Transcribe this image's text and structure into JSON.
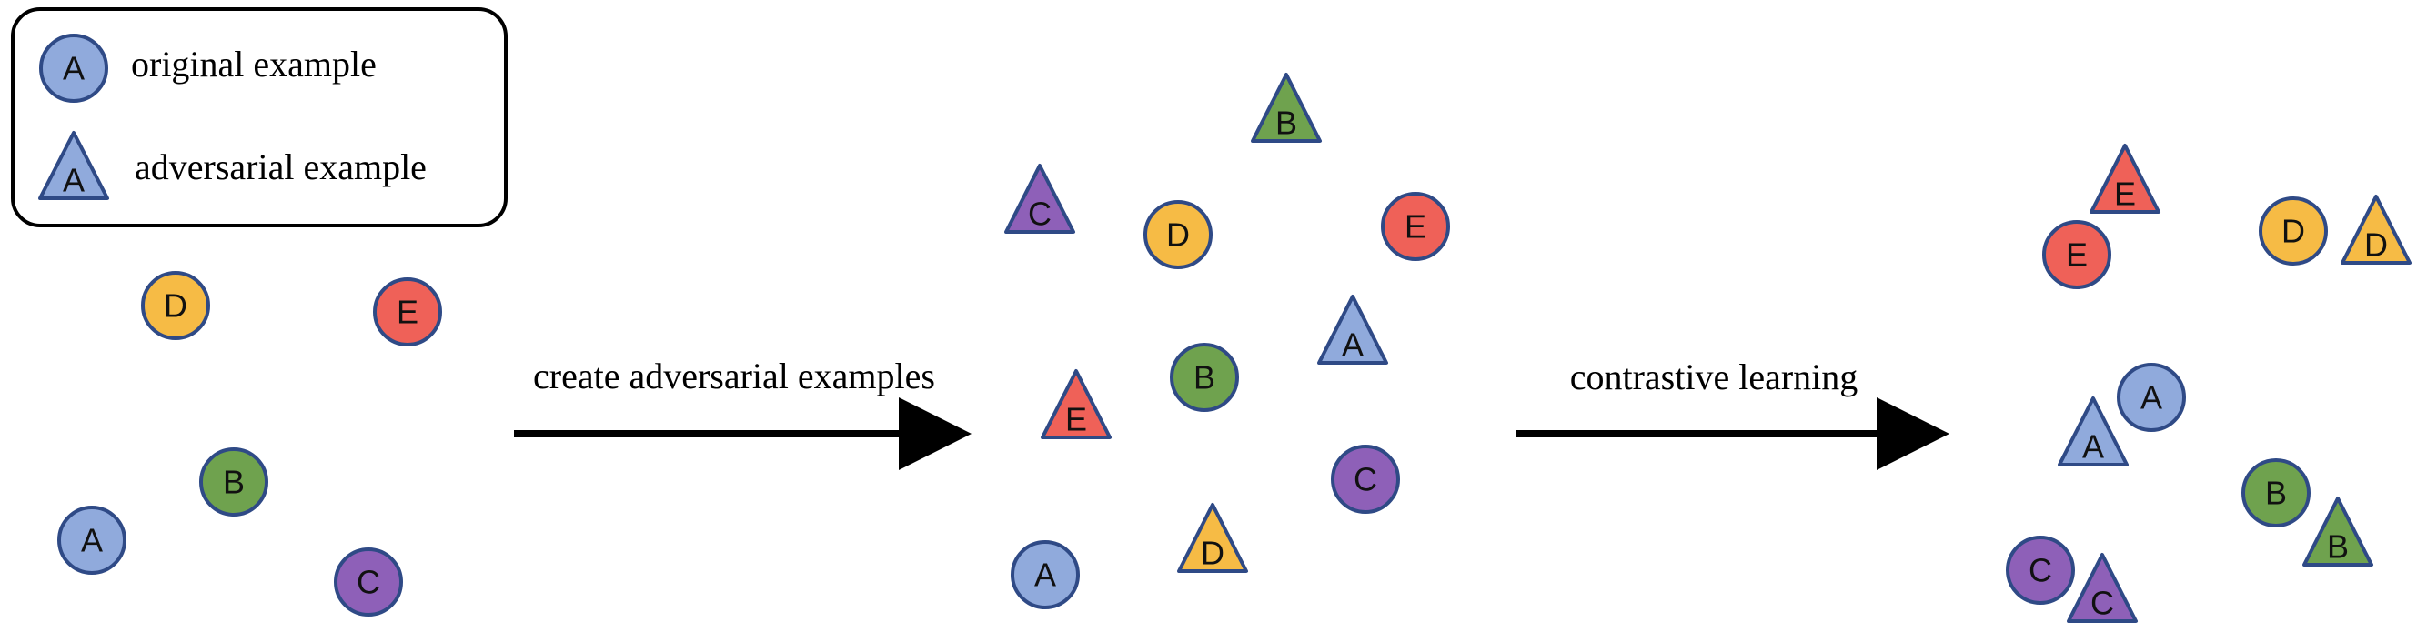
{
  "legend": {
    "original_label": "original example",
    "adversarial_label": "adversarial example",
    "sample_letter": "A"
  },
  "arrows": {
    "create_label": "create adversarial examples",
    "contrastive_label": "contrastive learning"
  },
  "colors": {
    "A": "#90aadc",
    "B": "#6fa24e",
    "C": "#8e60b8",
    "D": "#f6bb45",
    "E": "#ef6158",
    "stroke": "#2f4a86"
  },
  "panels": {
    "original": {
      "circles": [
        "D",
        "E",
        "B",
        "A",
        "C"
      ]
    },
    "augmented": {
      "circles": [
        "D",
        "E",
        "B",
        "C",
        "A"
      ],
      "triangles": [
        "B",
        "C",
        "A",
        "E",
        "D"
      ]
    },
    "learned": {
      "circles": [
        "E",
        "D",
        "A",
        "B",
        "C"
      ],
      "triangles": [
        "E",
        "D",
        "A",
        "B",
        "C"
      ]
    }
  }
}
